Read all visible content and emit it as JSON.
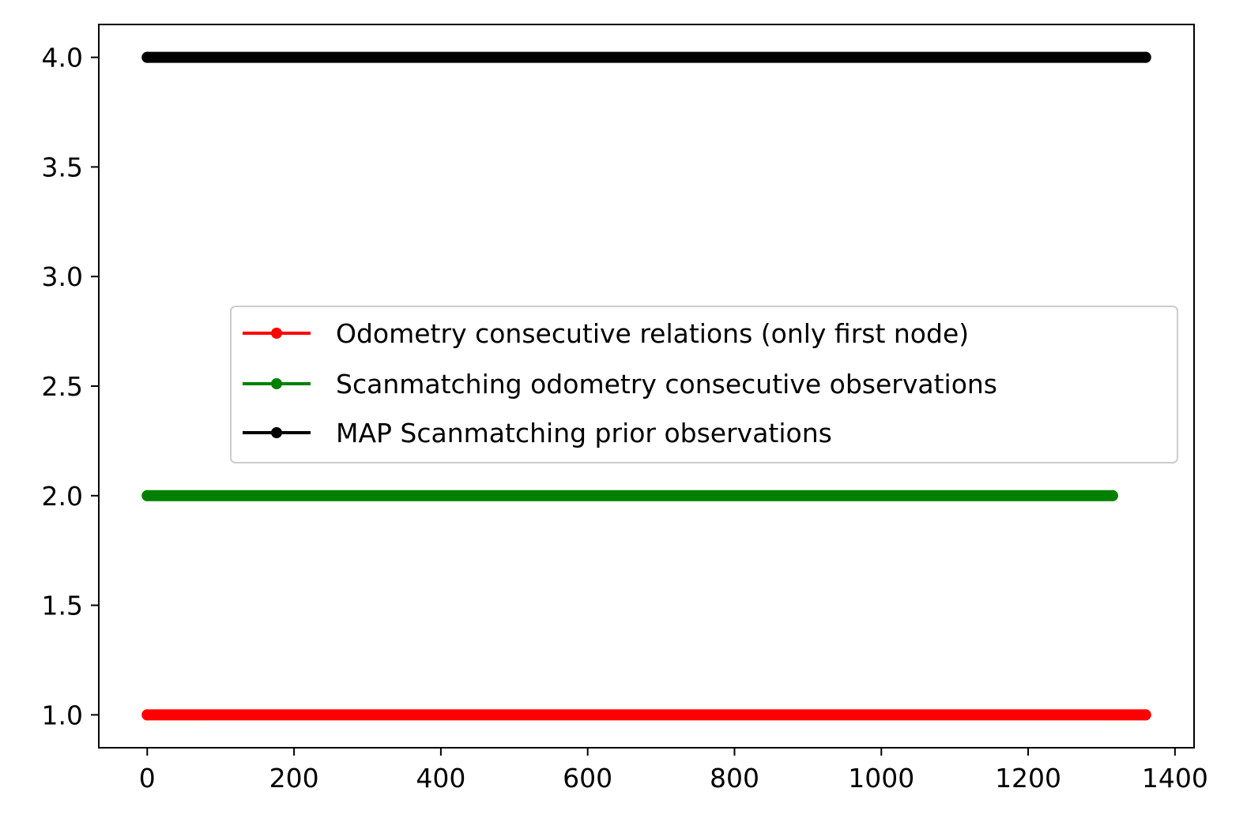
{
  "chart_data": {
    "type": "line",
    "title": "",
    "xlabel": "",
    "ylabel": "",
    "xlim": [
      -66,
      1426
    ],
    "ylim": [
      0.85,
      4.15
    ],
    "xticks": [
      0,
      200,
      400,
      600,
      800,
      1000,
      1200,
      1400
    ],
    "xtick_labels": [
      "0",
      "200",
      "400",
      "600",
      "800",
      "1000",
      "1200",
      "1400"
    ],
    "yticks": [
      1.0,
      1.5,
      2.0,
      2.5,
      3.0,
      3.5,
      4.0
    ],
    "ytick_labels": [
      "1.0",
      "1.5",
      "2.0",
      "2.5",
      "3.0",
      "3.5",
      "4.0"
    ],
    "grid": false,
    "legend_position": "center-right",
    "series": [
      {
        "name": "Odometry consecutive relations (only first node)",
        "color": "#ff0000",
        "x_start": 0,
        "x_end": 1360,
        "y": 1.0
      },
      {
        "name": "Scanmatching odometry consecutive observations",
        "color": "#008000",
        "x_start": 0,
        "x_end": 1315,
        "y": 2.0
      },
      {
        "name": "MAP Scanmatching prior observations",
        "color": "#000000",
        "x_start": 0,
        "x_end": 1360,
        "y": 4.0
      }
    ]
  }
}
